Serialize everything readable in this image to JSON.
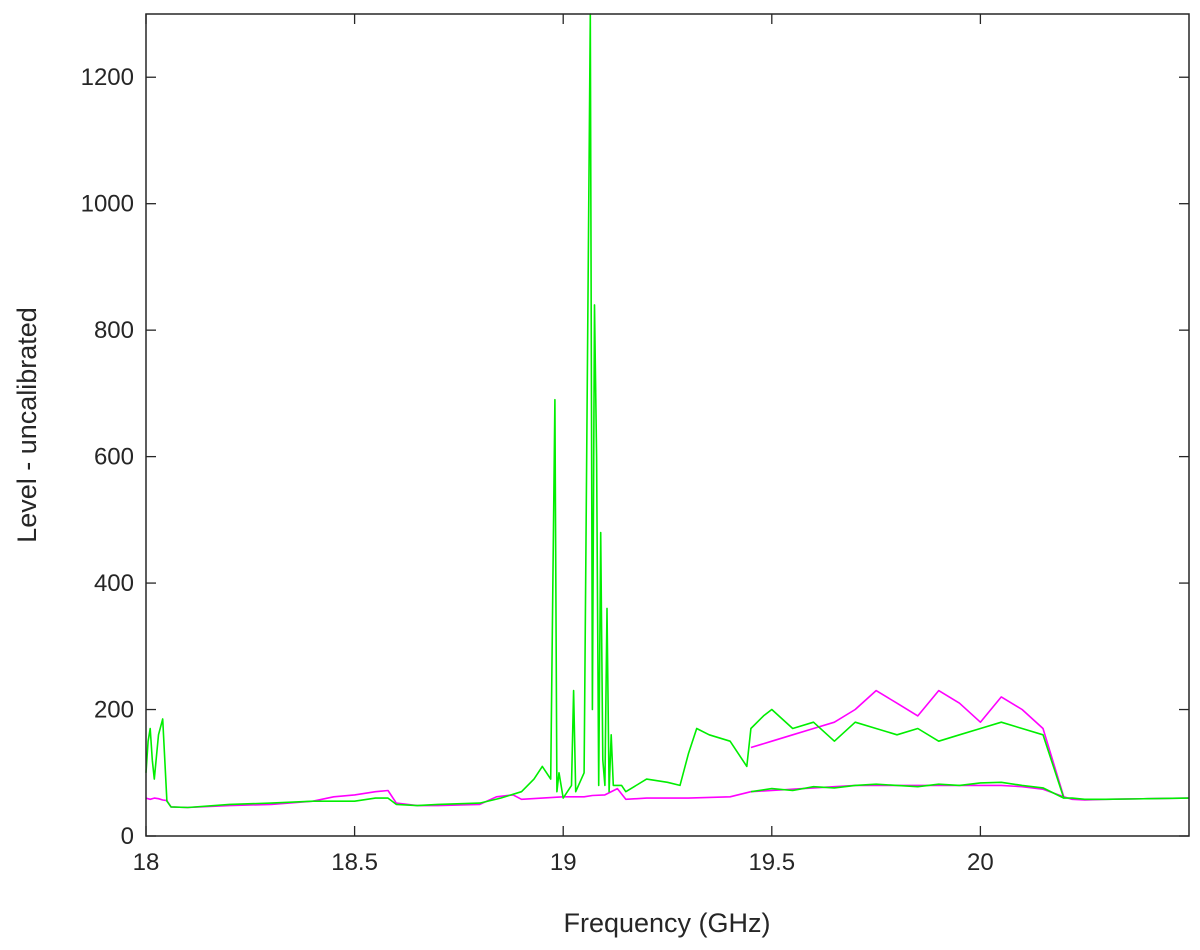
{
  "chart_data": {
    "type": "line",
    "title": "",
    "xlabel": "Frequency (GHz)",
    "ylabel": "Level - uncalibrated",
    "xlim": [
      18.0,
      20.5
    ],
    "ylim": [
      0,
      1300
    ],
    "xticks": [
      18,
      18.5,
      19,
      19.5,
      20
    ],
    "xtick_labels": [
      "18",
      "18.5",
      "19",
      "19.5",
      "20"
    ],
    "yticks": [
      0,
      200,
      400,
      600,
      800,
      1000,
      1200
    ],
    "ytick_labels": [
      "0",
      "200",
      "400",
      "600",
      "800",
      "1000",
      "1200"
    ],
    "grid": false,
    "legend": "none",
    "series": [
      {
        "color": "#ff00ff",
        "x": [
          18.0,
          18.01,
          18.02,
          18.03,
          18.04,
          18.05,
          18.06,
          18.1,
          18.2,
          18.3,
          18.4,
          18.45,
          18.5,
          18.55,
          18.58,
          18.6,
          18.65,
          18.7,
          18.8,
          18.84,
          18.88,
          18.9,
          18.95,
          19.0,
          19.05,
          19.07,
          19.1,
          19.13,
          19.15,
          19.2,
          19.3,
          19.4,
          19.45,
          19.5,
          19.55,
          19.6,
          19.65,
          19.7,
          19.75,
          19.8,
          19.85,
          19.9,
          19.95,
          20.0,
          20.05,
          20.1,
          20.15,
          20.2,
          20.22,
          20.25,
          20.3,
          20.4,
          20.5
        ],
        "y": [
          60,
          58,
          60,
          59,
          57,
          56,
          46,
          45,
          48,
          50,
          55,
          62,
          65,
          70,
          72,
          52,
          48,
          48,
          50,
          62,
          65,
          58,
          60,
          62,
          62,
          64,
          65,
          75,
          58,
          60,
          60,
          62,
          70,
          72,
          74,
          76,
          78,
          80,
          80,
          80,
          80,
          80,
          80,
          80,
          80,
          78,
          74,
          62,
          58,
          57,
          58,
          59,
          60
        ]
      },
      {
        "color": "#ff00ff",
        "x": [
          19.45,
          19.5,
          19.55,
          19.6,
          19.65,
          19.7,
          19.75,
          19.8,
          19.85,
          19.9,
          19.95,
          20.0,
          20.05,
          20.1,
          20.15,
          20.2
        ],
        "y": [
          140,
          150,
          160,
          170,
          180,
          200,
          230,
          210,
          190,
          230,
          210,
          180,
          220,
          200,
          170,
          62
        ]
      },
      {
        "color": "#00ee00",
        "x": [
          18.0,
          18.005,
          18.01,
          18.015,
          18.02,
          18.03,
          18.04,
          18.05,
          18.06,
          18.1,
          18.2,
          18.3,
          18.4,
          18.5,
          18.55,
          18.58,
          18.6,
          18.65,
          18.7,
          18.8,
          18.85,
          18.9,
          18.93,
          18.95,
          18.97,
          18.98,
          18.985,
          18.99,
          19.0,
          19.02,
          19.025,
          19.03,
          19.05,
          19.065,
          19.07,
          19.075,
          19.08,
          19.085,
          19.09,
          19.095,
          19.1,
          19.105,
          19.11,
          19.115,
          19.12,
          19.14,
          19.15,
          19.2,
          19.25,
          19.28,
          19.3,
          19.32,
          19.35,
          19.4,
          19.44,
          19.45,
          19.48,
          19.5,
          19.55,
          19.6,
          19.65,
          19.7,
          19.75,
          19.8,
          19.85,
          19.9,
          19.95,
          20.0,
          20.05,
          20.1,
          20.15,
          20.2,
          20.22,
          20.25,
          20.3,
          20.4,
          20.5
        ],
        "y": [
          100,
          150,
          170,
          120,
          90,
          160,
          185,
          55,
          46,
          45,
          50,
          52,
          55,
          55,
          60,
          60,
          50,
          48,
          50,
          52,
          60,
          70,
          90,
          110,
          90,
          690,
          70,
          100,
          60,
          80,
          230,
          70,
          100,
          1300,
          200,
          840,
          600,
          80,
          480,
          120,
          80,
          360,
          70,
          160,
          80,
          80,
          70,
          90,
          85,
          80,
          130,
          170,
          160,
          150,
          110,
          170,
          190,
          200,
          170,
          180,
          150,
          180,
          170,
          160,
          170,
          150,
          160,
          170,
          180,
          170,
          160,
          60,
          60,
          58,
          58,
          59,
          60
        ]
      },
      {
        "color": "#00ee00",
        "x": [
          19.45,
          19.5,
          19.55,
          19.6,
          19.65,
          19.7,
          19.75,
          19.8,
          19.85,
          19.9,
          19.95,
          20.0,
          20.05,
          20.1,
          20.15,
          20.2
        ],
        "y": [
          70,
          75,
          72,
          78,
          76,
          80,
          82,
          80,
          78,
          82,
          80,
          84,
          85,
          80,
          76,
          60
        ]
      }
    ]
  }
}
